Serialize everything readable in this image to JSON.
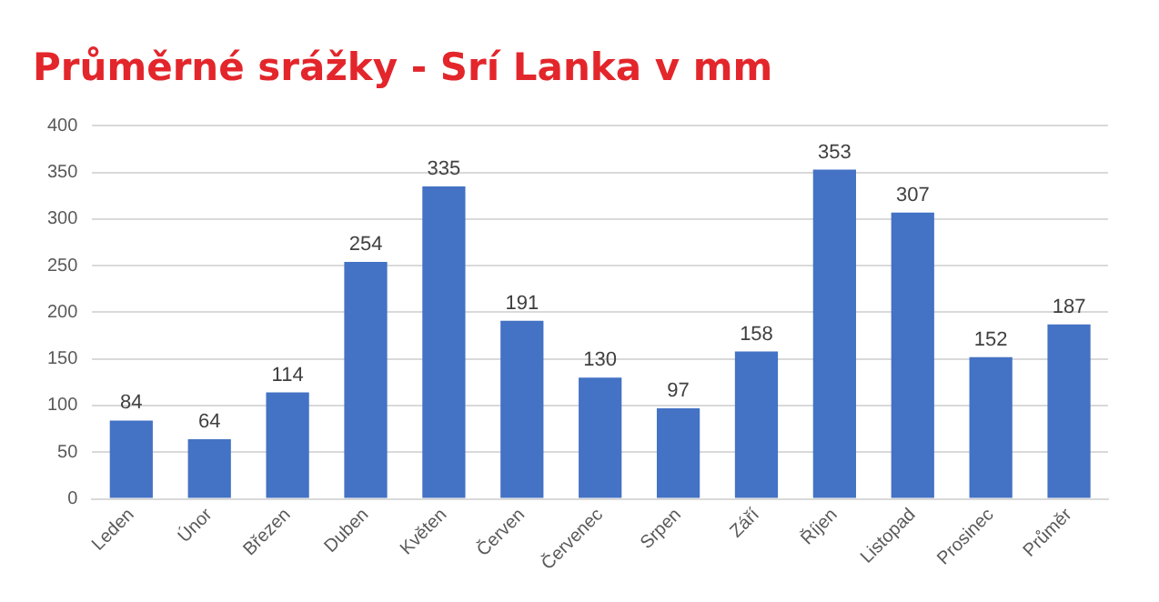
{
  "chart_data": {
    "type": "bar",
    "title": "Průměrné srážky - Srí Lanka v mm",
    "categories": [
      "Leden",
      "Únor",
      "Březen",
      "Duben",
      "Květen",
      "Červen",
      "Červenec",
      "Srpen",
      "Září",
      "Říjen",
      "Listopad",
      "Prosinec",
      "Průměr"
    ],
    "values": [
      84,
      64,
      114,
      254,
      335,
      191,
      130,
      97,
      158,
      353,
      307,
      152,
      187
    ],
    "color": "#4472c4",
    "ylim": [
      0,
      400
    ],
    "yticks": [
      0,
      50,
      100,
      150,
      200,
      250,
      300,
      350,
      400
    ],
    "grid": "y",
    "data_labels": true,
    "legend": false
  }
}
